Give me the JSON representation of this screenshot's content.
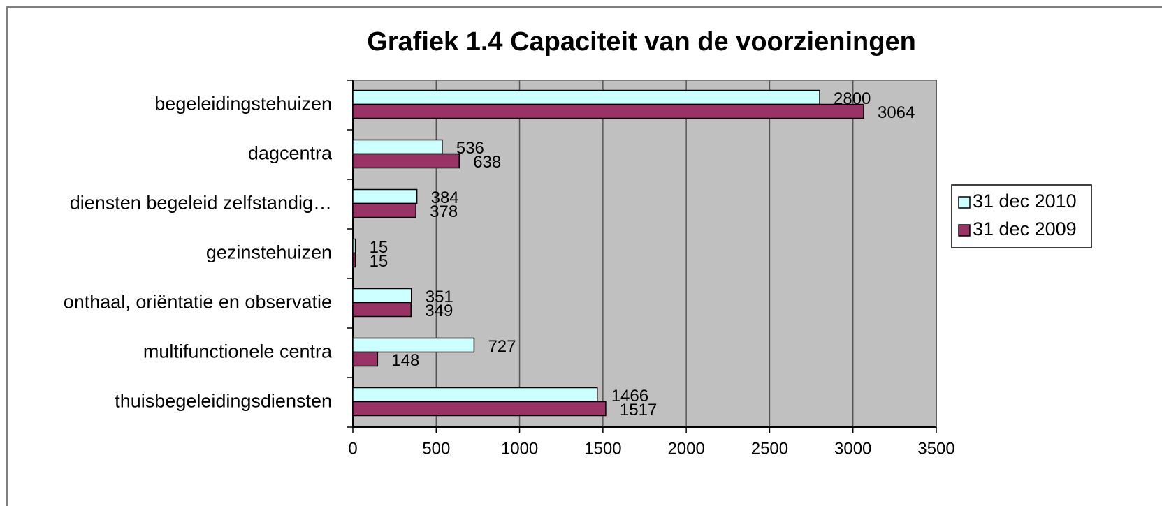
{
  "chart_data": {
    "type": "bar",
    "orientation": "horizontal",
    "title": "Grafiek 1.4 Capaciteit van de voorzieningen",
    "categories": [
      "begeleidingstehuizen",
      "dagcentra",
      "diensten begeleid zelfstandig…",
      "gezinstehuizen",
      "onthaal, oriëntatie en observatie",
      "multifunctionele centra",
      "thuisbegeleidingsdiensten"
    ],
    "series": [
      {
        "name": "31 dec 2010",
        "color": "#ccffff",
        "values": [
          2800,
          536,
          384,
          15,
          351,
          727,
          1466
        ]
      },
      {
        "name": "31 dec 2009",
        "color": "#993366",
        "values": [
          3064,
          638,
          378,
          15,
          349,
          148,
          1517
        ]
      }
    ],
    "xlim": [
      0,
      3500
    ],
    "xticks": [
      0,
      500,
      1000,
      1500,
      2000,
      2500,
      3000,
      3500
    ],
    "grid": true,
    "legend": "right",
    "plot_background": "#c0c0c0"
  }
}
